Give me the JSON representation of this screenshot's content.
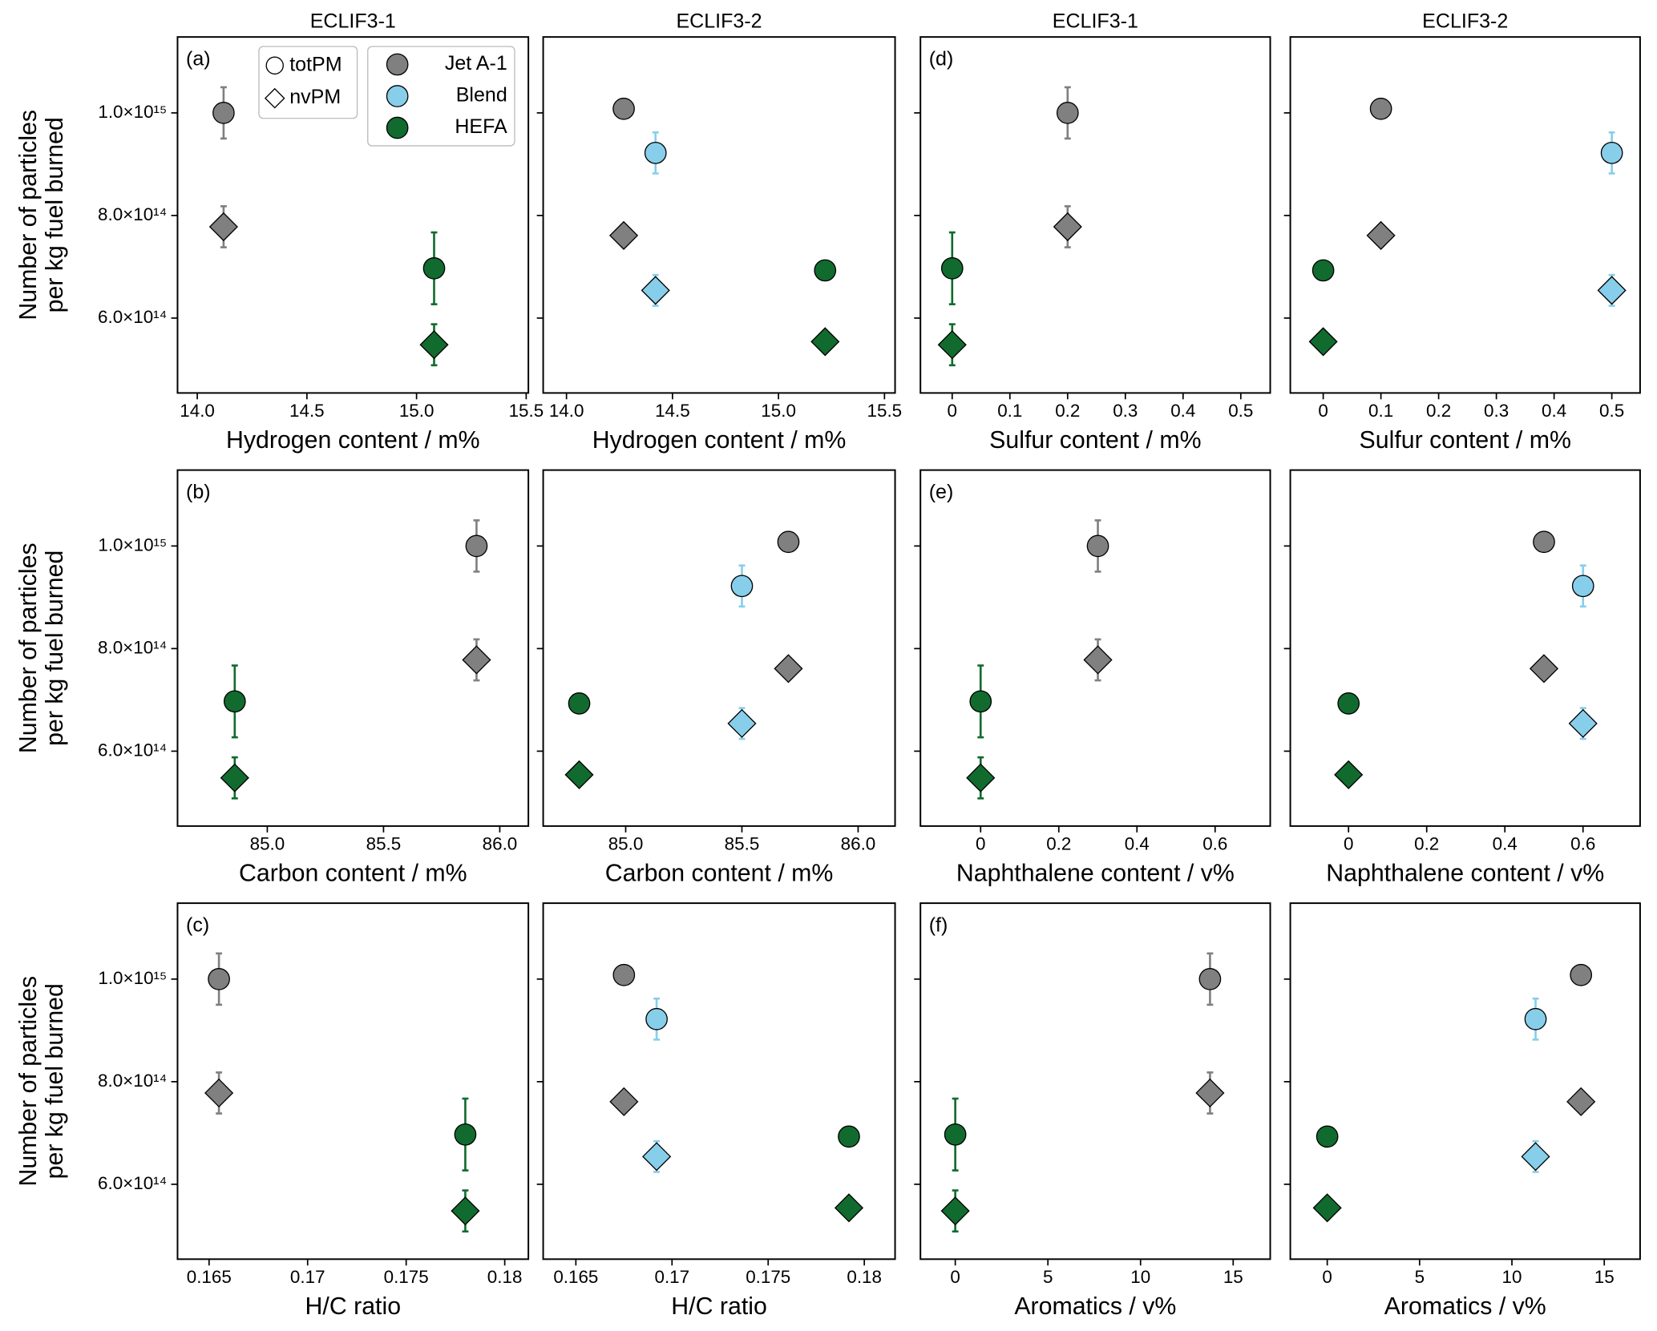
{
  "chart_data": [
    {
      "type": "scatter",
      "title": "ECLIF3-1",
      "panel_label": "(a)",
      "xlabel": "Hydrogen content / m%",
      "ylabel": [
        "Number of particles",
        "per kg fuel burned"
      ],
      "xlim": [
        13.91,
        15.51
      ],
      "xticks": [
        {
          "value": 14,
          "label": "14.0"
        },
        14.5,
        {
          "value": 15,
          "label": "15.0"
        },
        15.5
      ],
      "ylim": [
        454000000000000.0,
        1148000000000000.0
      ],
      "yticks": [
        {
          "value": 600000000000000.0,
          "label": "6.0×10¹⁴"
        },
        {
          "value": 800000000000000.0,
          "label": "8.0×10¹⁴"
        },
        {
          "value": 1000000000000000.0,
          "label": "1.0×10¹⁵"
        }
      ],
      "legend": {
        "markers": [
          "totPM",
          "nvPM"
        ],
        "fuels": [
          {
            "name": "Jet A-1",
            "color": "#808080"
          },
          {
            "name": "Blend",
            "color": "#87ceeb"
          },
          {
            "name": "HEFA",
            "color": "#116b2e"
          }
        ]
      },
      "series": [
        {
          "color": "#808080",
          "x": [
            14.12,
            14.12
          ],
          "values": [
            1000000000000000.0,
            778000000000000.0
          ],
          "yerr": [
            50000000000000.0,
            40000000000000.0
          ]
        },
        {
          "color": "#116b2e",
          "x": [
            15.08,
            15.08
          ],
          "values": [
            697000000000000.0,
            548000000000000.0
          ],
          "yerr": [
            70000000000000.0,
            40000000000000.0
          ]
        }
      ]
    },
    {
      "type": "scatter",
      "title": "ECLIF3-2",
      "xlabel": "Hydrogen content / m%",
      "xlim": [
        13.89,
        15.55
      ],
      "xticks": [
        {
          "value": 14,
          "label": "14.0"
        },
        14.5,
        {
          "value": 15,
          "label": "15.0"
        },
        15.5
      ],
      "ylim": [
        454000000000000.0,
        1148000000000000.0
      ],
      "yticks": [
        600000000000000.0,
        800000000000000.0,
        1000000000000000.0
      ],
      "ytick_labels": false,
      "series": [
        {
          "color": "#808080",
          "x": [
            14.27,
            14.27
          ],
          "values": [
            1008000000000000.0,
            761000000000000.0
          ],
          "yerr": [
            null,
            null
          ]
        },
        {
          "color": "#87ceeb",
          "x": [
            14.42,
            14.42
          ],
          "values": [
            922000000000000.0,
            654000000000000.0
          ],
          "yerr": [
            40000000000000.0,
            30000000000000.0
          ]
        },
        {
          "color": "#116b2e",
          "x": [
            15.22,
            15.22
          ],
          "values": [
            693000000000000.0,
            554000000000000.0
          ],
          "yerr": [
            10000000000000.0,
            10000000000000.0
          ]
        }
      ]
    },
    {
      "type": "scatter",
      "title": "ECLIF3-1",
      "panel_label": "(d)",
      "xlabel": "Sulfur content / m%",
      "xlim": [
        -0.055,
        0.551
      ],
      "xticks": [
        0,
        0.1,
        0.2,
        0.3,
        0.4,
        0.5
      ],
      "ylim": [
        454000000000000.0,
        1148000000000000.0
      ],
      "yticks": [
        600000000000000.0,
        800000000000000.0,
        1000000000000000.0
      ],
      "ytick_labels": false,
      "series": [
        {
          "color": "#808080",
          "x": [
            0.2,
            0.2
          ],
          "values": [
            1000000000000000.0,
            778000000000000.0
          ],
          "yerr": [
            50000000000000.0,
            40000000000000.0
          ]
        },
        {
          "color": "#116b2e",
          "x": [
            0,
            0
          ],
          "values": [
            697000000000000.0,
            548000000000000.0
          ],
          "yerr": [
            70000000000000.0,
            40000000000000.0
          ]
        }
      ]
    },
    {
      "type": "scatter",
      "title": "ECLIF3-2",
      "xlabel": "Sulfur content / m%",
      "xlim": [
        -0.057,
        0.549
      ],
      "xticks": [
        0,
        0.1,
        0.2,
        0.3,
        0.4,
        0.5
      ],
      "ylim": [
        454000000000000.0,
        1148000000000000.0
      ],
      "yticks": [
        600000000000000.0,
        800000000000000.0,
        1000000000000000.0
      ],
      "ytick_labels": false,
      "series": [
        {
          "color": "#808080",
          "x": [
            0.1,
            0.1
          ],
          "values": [
            1008000000000000.0,
            761000000000000.0
          ],
          "yerr": [
            null,
            null
          ]
        },
        {
          "color": "#87ceeb",
          "x": [
            0.5,
            0.5
          ],
          "values": [
            922000000000000.0,
            654000000000000.0
          ],
          "yerr": [
            40000000000000.0,
            30000000000000.0
          ]
        },
        {
          "color": "#116b2e",
          "x": [
            0,
            0
          ],
          "values": [
            693000000000000.0,
            554000000000000.0
          ],
          "yerr": [
            10000000000000.0,
            10000000000000.0
          ]
        }
      ]
    },
    {
      "type": "scatter",
      "panel_label": "(b)",
      "xlabel": "Carbon content / m%",
      "ylabel": [
        "Number of particles",
        "per kg fuel burned"
      ],
      "xlim": [
        84.614,
        86.123
      ],
      "xticks": [
        {
          "value": 85,
          "label": "85.0"
        },
        85.5,
        {
          "value": 86,
          "label": "86.0"
        }
      ],
      "ylim": [
        454000000000000.0,
        1148000000000000.0
      ],
      "yticks": [
        {
          "value": 600000000000000.0,
          "label": "6.0×10¹⁴"
        },
        {
          "value": 800000000000000.0,
          "label": "8.0×10¹⁴"
        },
        {
          "value": 1000000000000000.0,
          "label": "1.0×10¹⁵"
        }
      ],
      "series": [
        {
          "color": "#808080",
          "x": [
            85.9,
            85.9
          ],
          "values": [
            1000000000000000.0,
            778000000000000.0
          ],
          "yerr": [
            50000000000000.0,
            40000000000000.0
          ]
        },
        {
          "color": "#116b2e",
          "x": [
            84.86,
            84.86
          ],
          "values": [
            697000000000000.0,
            548000000000000.0
          ],
          "yerr": [
            70000000000000.0,
            40000000000000.0
          ]
        }
      ]
    },
    {
      "type": "scatter",
      "xlabel": "Carbon content / m%",
      "xlim": [
        84.645,
        86.159
      ],
      "xticks": [
        {
          "value": 85,
          "label": "85.0"
        },
        85.5,
        {
          "value": 86,
          "label": "86.0"
        }
      ],
      "ylim": [
        454000000000000.0,
        1148000000000000.0
      ],
      "yticks": [
        600000000000000.0,
        800000000000000.0,
        1000000000000000.0
      ],
      "ytick_labels": false,
      "series": [
        {
          "color": "#808080",
          "x": [
            85.7,
            85.7
          ],
          "values": [
            1008000000000000.0,
            761000000000000.0
          ],
          "yerr": [
            null,
            null
          ]
        },
        {
          "color": "#87ceeb",
          "x": [
            85.5,
            85.5
          ],
          "values": [
            922000000000000.0,
            654000000000000.0
          ],
          "yerr": [
            40000000000000.0,
            30000000000000.0
          ]
        },
        {
          "color": "#116b2e",
          "x": [
            84.8,
            84.8
          ],
          "values": [
            693000000000000.0,
            554000000000000.0
          ],
          "yerr": [
            10000000000000.0,
            10000000000000.0
          ]
        }
      ]
    },
    {
      "type": "scatter",
      "panel_label": "(e)",
      "xlabel": "Naphthalene content / v%",
      "xlim": [
        -0.154,
        0.741
      ],
      "xticks": [
        0,
        0.2,
        0.4,
        0.6
      ],
      "ylim": [
        454000000000000.0,
        1148000000000000.0
      ],
      "yticks": [
        600000000000000.0,
        800000000000000.0,
        1000000000000000.0
      ],
      "ytick_labels": false,
      "series": [
        {
          "color": "#808080",
          "x": [
            0.3,
            0.3
          ],
          "values": [
            1000000000000000.0,
            778000000000000.0
          ],
          "yerr": [
            50000000000000.0,
            40000000000000.0
          ]
        },
        {
          "color": "#116b2e",
          "x": [
            0,
            0
          ],
          "values": [
            697000000000000.0,
            548000000000000.0
          ],
          "yerr": [
            70000000000000.0,
            40000000000000.0
          ]
        }
      ]
    },
    {
      "type": "scatter",
      "xlabel": "Naphthalene content / v%",
      "xlim": [
        -0.149,
        0.746
      ],
      "xticks": [
        0,
        0.2,
        0.4,
        0.6
      ],
      "ylim": [
        454000000000000.0,
        1148000000000000.0
      ],
      "yticks": [
        600000000000000.0,
        800000000000000.0,
        1000000000000000.0
      ],
      "ytick_labels": false,
      "series": [
        {
          "color": "#808080",
          "x": [
            0.5,
            0.5
          ],
          "values": [
            1008000000000000.0,
            761000000000000.0
          ],
          "yerr": [
            null,
            null
          ]
        },
        {
          "color": "#87ceeb",
          "x": [
            0.6,
            0.6
          ],
          "values": [
            922000000000000.0,
            654000000000000.0
          ],
          "yerr": [
            40000000000000.0,
            30000000000000.0
          ]
        },
        {
          "color": "#116b2e",
          "x": [
            0,
            0
          ],
          "values": [
            693000000000000.0,
            554000000000000.0
          ],
          "yerr": [
            10000000000000.0,
            10000000000000.0
          ]
        }
      ]
    },
    {
      "type": "scatter",
      "panel_label": "(c)",
      "xlabel": "H/C ratio",
      "ylabel": [
        "Number of  particles",
        "per kg fuel burned"
      ],
      "xlim": [
        0.1634,
        0.1812
      ],
      "xticks": [
        0.165,
        0.17,
        0.175,
        0.18
      ],
      "ylim": [
        454000000000000.0,
        1148000000000000.0
      ],
      "yticks": [
        {
          "value": 600000000000000.0,
          "label": "6.0×10¹⁴"
        },
        {
          "value": 800000000000000.0,
          "label": "8.0×10¹⁴"
        },
        {
          "value": 1000000000000000.0,
          "label": "1.0×10¹⁵"
        }
      ],
      "series": [
        {
          "color": "#808080",
          "x": [
            0.1655,
            0.1655
          ],
          "values": [
            1000000000000000.0,
            778000000000000.0
          ],
          "yerr": [
            50000000000000.0,
            40000000000000.0
          ]
        },
        {
          "color": "#116b2e",
          "x": [
            0.178,
            0.178
          ],
          "values": [
            697000000000000.0,
            548000000000000.0
          ],
          "yerr": [
            70000000000000.0,
            40000000000000.0
          ]
        }
      ]
    },
    {
      "type": "scatter",
      "xlabel": "H/C ratio",
      "xlim": [
        0.1633,
        0.1816
      ],
      "xticks": [
        0.165,
        0.17,
        0.175,
        0.18
      ],
      "ylim": [
        454000000000000.0,
        1148000000000000.0
      ],
      "yticks": [
        600000000000000.0,
        800000000000000.0,
        1000000000000000.0
      ],
      "ytick_labels": false,
      "series": [
        {
          "color": "#808080",
          "x": [
            0.1675,
            0.1675
          ],
          "values": [
            1008000000000000.0,
            761000000000000.0
          ],
          "yerr": [
            null,
            null
          ]
        },
        {
          "color": "#87ceeb",
          "x": [
            0.1692,
            0.1692
          ],
          "values": [
            922000000000000.0,
            654000000000000.0
          ],
          "yerr": [
            40000000000000.0,
            30000000000000.0
          ]
        },
        {
          "color": "#116b2e",
          "x": [
            0.1792,
            0.1792
          ],
          "values": [
            693000000000000.0,
            554000000000000.0
          ],
          "yerr": [
            10000000000000.0,
            10000000000000.0
          ]
        }
      ]
    },
    {
      "type": "scatter",
      "panel_label": "(f)",
      "xlabel": "Aromatics / v%",
      "xlim": [
        -1.88,
        17
      ],
      "xticks": [
        0,
        5,
        10,
        15
      ],
      "ylim": [
        454000000000000.0,
        1148000000000000.0
      ],
      "yticks": [
        600000000000000.0,
        800000000000000.0,
        1000000000000000.0
      ],
      "ytick_labels": false,
      "series": [
        {
          "color": "#808080",
          "x": [
            13.75,
            13.75
          ],
          "values": [
            1000000000000000.0,
            778000000000000.0
          ],
          "yerr": [
            50000000000000.0,
            40000000000000.0
          ]
        },
        {
          "color": "#116b2e",
          "x": [
            0,
            0
          ],
          "values": [
            697000000000000.0,
            548000000000000.0
          ],
          "yerr": [
            70000000000000.0,
            40000000000000.0
          ]
        }
      ]
    },
    {
      "type": "scatter",
      "xlabel": "Aromatics / v%",
      "xlim": [
        -2,
        16.94
      ],
      "xticks": [
        0,
        5,
        10,
        15
      ],
      "ylim": [
        454000000000000.0,
        1148000000000000.0
      ],
      "yticks": [
        600000000000000.0,
        800000000000000.0,
        1000000000000000.0
      ],
      "ytick_labels": false,
      "series": [
        {
          "color": "#808080",
          "x": [
            13.74,
            13.74
          ],
          "values": [
            1008000000000000.0,
            761000000000000.0
          ],
          "yerr": [
            null,
            null
          ]
        },
        {
          "color": "#87ceeb",
          "x": [
            11.28,
            11.28
          ],
          "values": [
            922000000000000.0,
            654000000000000.0
          ],
          "yerr": [
            40000000000000.0,
            30000000000000.0
          ]
        },
        {
          "color": "#116b2e",
          "x": [
            0,
            0
          ],
          "values": [
            693000000000000.0,
            554000000000000.0
          ],
          "yerr": [
            10000000000000.0,
            10000000000000.0
          ]
        }
      ]
    }
  ]
}
